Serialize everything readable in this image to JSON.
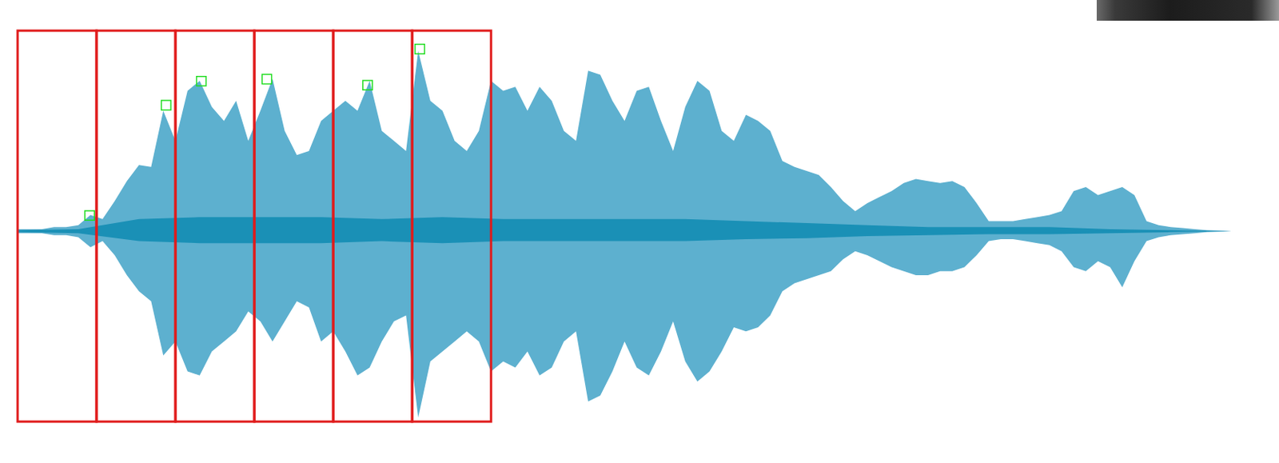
{
  "chart_data": {
    "type": "waveform",
    "tick_labels": false,
    "xlim": [
      0,
      100
    ],
    "ylim": [
      -0.95,
      1
    ],
    "color": "#5db0cf",
    "x": [
      0,
      1,
      2,
      3,
      4,
      5,
      6,
      7,
      8,
      9,
      10,
      11,
      12,
      13,
      14,
      15,
      16,
      17,
      18,
      19,
      20,
      21,
      22,
      23,
      24,
      25,
      26,
      27,
      28,
      29,
      30,
      31,
      32,
      33,
      34,
      35,
      36,
      37,
      38,
      39,
      40,
      41,
      42,
      43,
      44,
      45,
      46,
      47,
      48,
      49,
      50,
      51,
      52,
      53,
      54,
      55,
      56,
      57,
      58,
      59,
      60,
      61,
      62,
      63,
      64,
      65,
      66,
      67,
      68,
      69,
      70,
      71,
      72,
      73,
      74,
      75,
      76,
      77,
      78,
      79,
      80,
      81,
      82,
      83,
      84,
      85,
      86,
      87,
      88,
      89,
      90,
      91,
      92,
      93,
      94,
      95,
      96,
      97,
      98,
      99,
      100
    ],
    "upper": [
      0.01,
      0.01,
      0.01,
      0.02,
      0.02,
      0.03,
      0.08,
      0.06,
      0.15,
      0.25,
      0.33,
      0.32,
      0.6,
      0.45,
      0.7,
      0.75,
      0.62,
      0.55,
      0.65,
      0.45,
      0.6,
      0.76,
      0.5,
      0.38,
      0.4,
      0.55,
      0.6,
      0.65,
      0.6,
      0.75,
      0.5,
      0.45,
      0.4,
      0.9,
      0.65,
      0.6,
      0.45,
      0.4,
      0.5,
      0.75,
      0.7,
      0.72,
      0.6,
      0.72,
      0.65,
      0.5,
      0.45,
      0.8,
      0.78,
      0.65,
      0.55,
      0.7,
      0.72,
      0.55,
      0.4,
      0.62,
      0.75,
      0.7,
      0.5,
      0.45,
      0.58,
      0.55,
      0.5,
      0.35,
      0.32,
      0.3,
      0.28,
      0.22,
      0.15,
      0.1,
      0.14,
      0.17,
      0.2,
      0.24,
      0.26,
      0.25,
      0.24,
      0.25,
      0.22,
      0.14,
      0.05,
      0.05,
      0.05,
      0.06,
      0.07,
      0.08,
      0.1,
      0.2,
      0.22,
      0.18,
      0.2,
      0.22,
      0.18,
      0.05,
      0.03,
      0.02,
      0.015,
      0.01,
      0.005,
      0.003,
      0
    ],
    "lower": [
      -0.01,
      -0.01,
      -0.01,
      -0.02,
      -0.02,
      -0.03,
      -0.08,
      -0.05,
      -0.12,
      -0.22,
      -0.3,
      -0.35,
      -0.62,
      -0.55,
      -0.7,
      -0.72,
      -0.6,
      -0.55,
      -0.5,
      -0.4,
      -0.45,
      -0.55,
      -0.45,
      -0.35,
      -0.38,
      -0.55,
      -0.5,
      -0.6,
      -0.72,
      -0.68,
      -0.55,
      -0.45,
      -0.42,
      -0.93,
      -0.65,
      -0.6,
      -0.55,
      -0.5,
      -0.55,
      -0.7,
      -0.65,
      -0.68,
      -0.6,
      -0.72,
      -0.68,
      -0.55,
      -0.5,
      -0.85,
      -0.82,
      -0.7,
      -0.55,
      -0.68,
      -0.72,
      -0.6,
      -0.45,
      -0.65,
      -0.75,
      -0.7,
      -0.6,
      -0.48,
      -0.5,
      -0.48,
      -0.42,
      -0.3,
      -0.26,
      -0.24,
      -0.22,
      -0.2,
      -0.14,
      -0.1,
      -0.12,
      -0.15,
      -0.18,
      -0.2,
      -0.22,
      -0.22,
      -0.2,
      -0.2,
      -0.18,
      -0.12,
      -0.05,
      -0.04,
      -0.04,
      -0.05,
      -0.06,
      -0.07,
      -0.1,
      -0.18,
      -0.2,
      -0.15,
      -0.18,
      -0.28,
      -0.15,
      -0.05,
      -0.03,
      -0.02,
      -0.015,
      -0.01,
      -0.005,
      -0.003,
      0
    ],
    "inner": {
      "color": "#1a90b6",
      "x": [
        0,
        5,
        10,
        15,
        20,
        25,
        30,
        35,
        40,
        45,
        50,
        55,
        60,
        65,
        70,
        75,
        80,
        85,
        90,
        95,
        100
      ],
      "upper": [
        0.005,
        0.01,
        0.06,
        0.07,
        0.07,
        0.07,
        0.06,
        0.07,
        0.06,
        0.06,
        0.06,
        0.06,
        0.05,
        0.04,
        0.03,
        0.02,
        0.02,
        0.02,
        0.01,
        0.005,
        0
      ],
      "lower": [
        -0.005,
        -0.01,
        -0.05,
        -0.06,
        -0.06,
        -0.06,
        -0.05,
        -0.06,
        -0.05,
        -0.05,
        -0.05,
        -0.05,
        -0.04,
        -0.035,
        -0.025,
        -0.02,
        -0.015,
        -0.015,
        -0.01,
        -0.005,
        0
      ]
    },
    "frames": {
      "color": "#e01b1b",
      "edges": [
        0,
        6.5,
        13,
        19.5,
        26,
        32.5,
        39
      ]
    },
    "peaks": {
      "color": "#22dd22",
      "marker": "square",
      "x": [
        5.9,
        12.2,
        15.1,
        20.5,
        28.8,
        33.1
      ],
      "y": [
        0.08,
        0.63,
        0.75,
        0.76,
        0.73,
        0.91
      ]
    }
  }
}
